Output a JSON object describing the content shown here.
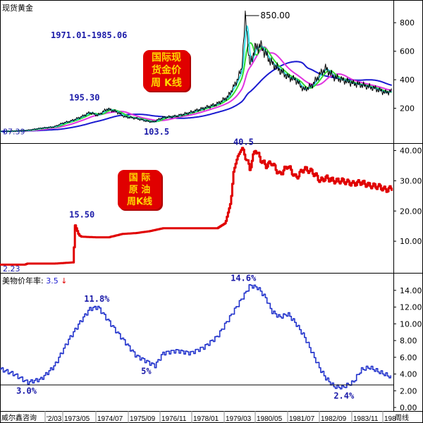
{
  "header": {
    "gold_title": "现货黄金",
    "period": "1971.01-1985.06",
    "gold_badge": [
      "国际现",
      "货金价",
      "周 K线"
    ],
    "oil_badge": [
      "国 际",
      "原 油",
      "周K线"
    ],
    "cpi_title": "美物价年率:",
    "cpi_value": "3.5",
    "cpi_arrow": "↓"
  },
  "footer": {
    "source": "威尔鑫咨询",
    "frequency": "周线",
    "dates": [
      "'2/03",
      "1973/05",
      "1974/07",
      "1975/09",
      "1976/11",
      "1978/01",
      "1979/03",
      "1980/05",
      "1981/07",
      "1982/09",
      "1983/11",
      "198"
    ]
  },
  "colors": {
    "gold_price": "#000000",
    "ma_cyan": "#33dde8",
    "ma_green": "#33dd33",
    "ma_magenta": "#e033e0",
    "ma_blue": "#1a1ad0",
    "oil": "#e00000",
    "cpi": "#2233cc",
    "annotation": "#1a1aa8"
  },
  "chart_data": [
    {
      "type": "line",
      "title": "现货黄金",
      "x": [
        1971.0,
        1971.5,
        1972.0,
        1972.5,
        1973.0,
        1973.3,
        1973.6,
        1974.0,
        1974.3,
        1974.6,
        1974.95,
        1975.3,
        1975.6,
        1976.0,
        1976.4,
        1976.65,
        1977.0,
        1977.5,
        1978.0,
        1978.5,
        1979.0,
        1979.4,
        1979.7,
        1979.9,
        1980.05,
        1980.2,
        1980.4,
        1980.6,
        1980.8,
        1981.0,
        1981.3,
        1981.6,
        1981.9,
        1982.2,
        1982.5,
        1982.8,
        1983.0,
        1983.3,
        1983.6,
        1984.0,
        1984.4,
        1984.8,
        1985.2,
        1985.45
      ],
      "series": [
        {
          "name": "",
          "values": [
            37.39,
            40,
            45,
            60,
            70,
            95,
            110,
            140,
            170,
            150,
            195.3,
            175,
            140,
            130,
            110,
            103.5,
            135,
            145,
            170,
            200,
            230,
            280,
            380,
            470,
            850,
            500,
            620,
            640,
            580,
            520,
            470,
            420,
            400,
            330,
            360,
            440,
            480,
            420,
            400,
            375,
            360,
            340,
            310,
            320
          ]
        }
      ],
      "annotations": [
        "1971.01-1985.06",
        "195.30",
        "103.5",
        "850.00",
        "37.39"
      ],
      "ylim": [
        0,
        900
      ],
      "yticks": [
        200,
        400,
        600,
        800
      ],
      "grid": false
    },
    {
      "type": "line",
      "x": [
        1971.0,
        1971.9,
        1972.0,
        1973.0,
        1973.7,
        1973.75,
        1973.9,
        1974.0,
        1974.5,
        1975.0,
        1975.5,
        1976.0,
        1976.5,
        1977.0,
        1977.5,
        1978.0,
        1978.5,
        1979.0,
        1979.3,
        1979.5,
        1979.6,
        1979.75,
        1979.9,
        1980.0,
        1980.2,
        1980.4,
        1980.6,
        1980.8,
        1981.0,
        1981.3,
        1981.6,
        1981.9,
        1982.2,
        1982.5,
        1982.8,
        1983.0,
        1983.3,
        1983.6,
        1984.0,
        1984.3,
        1984.6,
        1985.0,
        1985.2,
        1985.45
      ],
      "series": [
        {
          "name": "",
          "values": [
            2.23,
            2.23,
            2.6,
            2.6,
            3.0,
            15.5,
            12.0,
            11.5,
            11.3,
            11.3,
            12.4,
            12.7,
            13.3,
            14.3,
            14.3,
            14.3,
            14.3,
            14.3,
            16.0,
            23.0,
            33.0,
            38.0,
            40.5,
            39.0,
            34.0,
            40.5,
            37.0,
            35.0,
            36.0,
            32.0,
            35.0,
            31.0,
            34.0,
            33.0,
            30.0,
            31.0,
            30.0,
            30.0,
            29.0,
            29.5,
            28.5,
            28.0,
            27.0,
            27.5
          ]
        }
      ],
      "annotations": [
        "15.50",
        "40.5",
        "2.23"
      ],
      "ylim": [
        0,
        42
      ],
      "yticks": [
        10.0,
        20.0,
        30.0,
        40.0
      ],
      "grid": false
    },
    {
      "type": "line",
      "title": "美物价年率: 3.5",
      "x": [
        1971.0,
        1971.5,
        1972.0,
        1972.5,
        1973.0,
        1973.5,
        1974.0,
        1974.3,
        1974.6,
        1974.95,
        1975.3,
        1975.6,
        1976.0,
        1976.4,
        1976.7,
        1977.0,
        1977.5,
        1978.0,
        1978.5,
        1979.0,
        1979.5,
        1980.0,
        1980.2,
        1980.5,
        1980.8,
        1981.0,
        1981.3,
        1981.6,
        1981.9,
        1982.2,
        1982.5,
        1982.8,
        1983.0,
        1983.3,
        1983.6,
        1984.0,
        1984.3,
        1984.6,
        1985.0,
        1985.3,
        1985.45
      ],
      "series": [
        {
          "name": "",
          "values": [
            4.6,
            4.0,
            3.0,
            3.4,
            5.0,
            8.0,
            10.5,
            11.8,
            12.0,
            10.5,
            9.0,
            7.8,
            6.2,
            5.5,
            5.0,
            6.5,
            6.8,
            6.5,
            7.2,
            8.5,
            11.0,
            13.5,
            14.6,
            14.3,
            13.0,
            11.5,
            10.8,
            11.2,
            10.0,
            8.5,
            6.5,
            4.5,
            3.5,
            2.5,
            2.4,
            3.0,
            4.5,
            4.8,
            4.2,
            3.8,
            3.5
          ]
        }
      ],
      "annotations": [
        "11.8%",
        "14.6%",
        "3.0%",
        "5%",
        "2.4%"
      ],
      "ylim": [
        0,
        15
      ],
      "yticks": [
        0.0,
        2.0,
        4.0,
        6.0,
        8.0,
        10.0,
        12.0,
        14.0
      ],
      "grid": false
    }
  ]
}
